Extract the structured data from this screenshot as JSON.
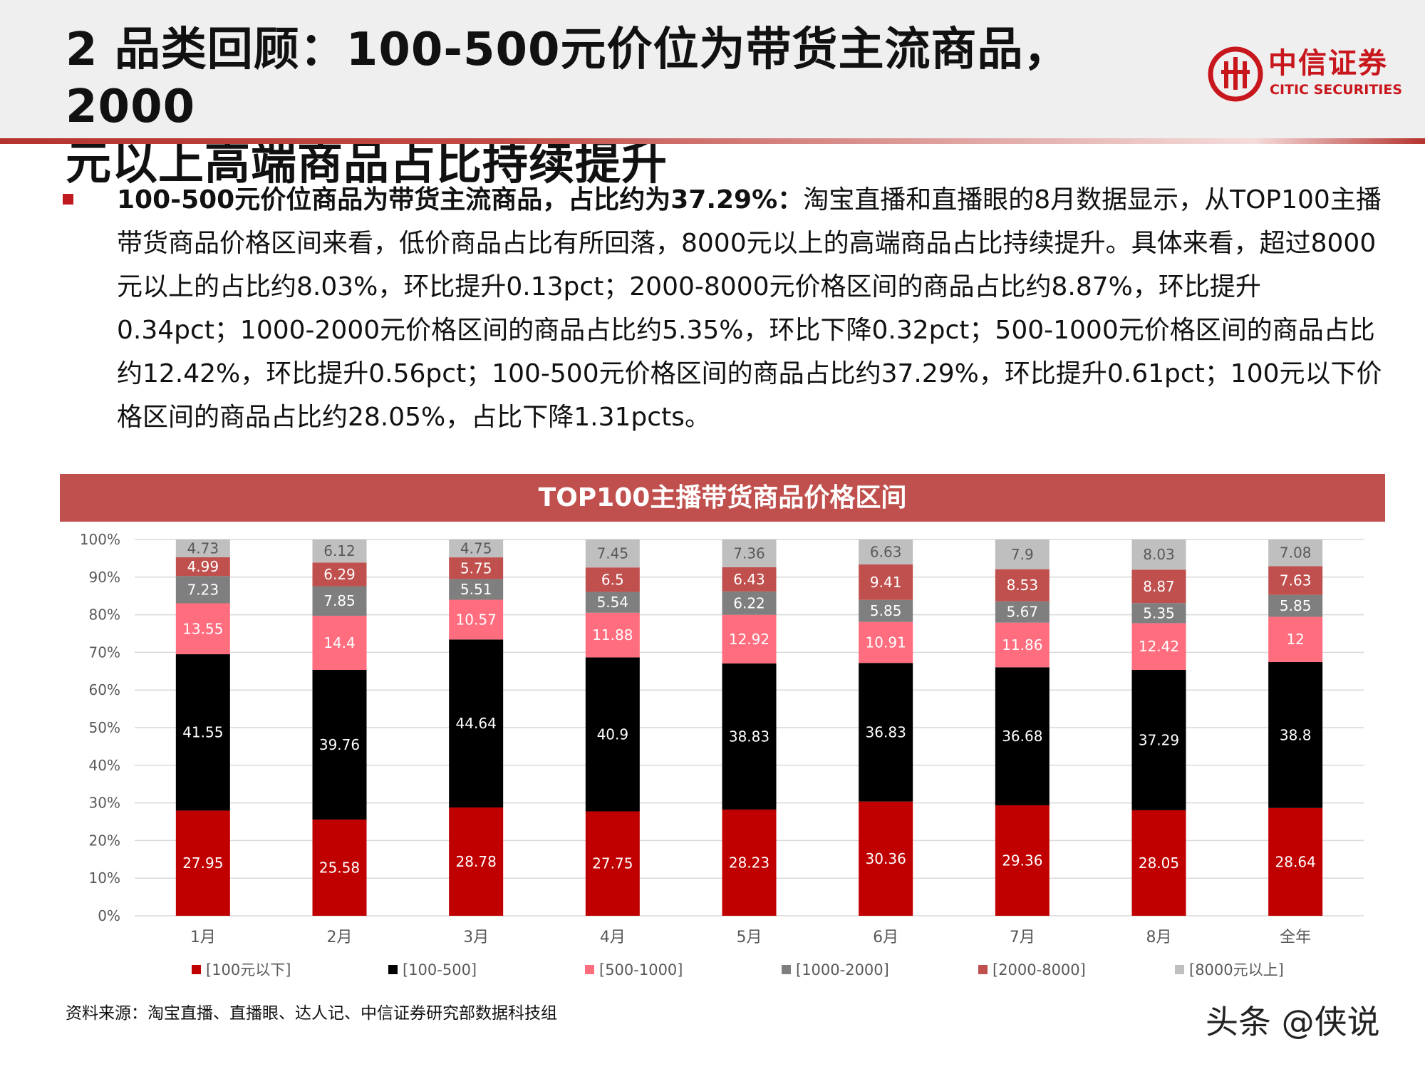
{
  "header": {
    "title_line1": "2 品类回顾：100-500元价位为带货主流商品，2000",
    "title_line2": "元以上高端商品占比持续提升",
    "logo_cn": "中信证券",
    "logo_en": "CITIC SECURITIES"
  },
  "body": {
    "bold_lead": "100-500元价位商品为带货主流商品，占比约为37.29%：",
    "text": "淘宝直播和直播眼的8月数据显示，从TOP100主播带货商品价格区间来看，低价商品占比有所回落，8000元以上的高端商品占比持续提升。具体来看，超过8000元以上的占比约8.03%，环比提升0.13pct；2000-8000元价格区间的商品占比约8.87%，环比提升0.34pct；1000-2000元价格区间的商品占比约5.35%，环比下降0.32pct；500-1000元价格区间的商品占比约12.42%，环比提升0.56pct；100-500元价格区间的商品占比约37.29%，环比提升0.61pct；100元以下价格区间的商品占比约28.05%，占比下降1.31pcts。"
  },
  "chart_data": {
    "type": "bar",
    "stacked": true,
    "title": "TOP100主播带货商品价格区间",
    "categories": [
      "1月",
      "2月",
      "3月",
      "4月",
      "5月",
      "6月",
      "7月",
      "8月",
      "全年"
    ],
    "y_ticks": [
      "0%",
      "10%",
      "20%",
      "30%",
      "40%",
      "50%",
      "60%",
      "70%",
      "80%",
      "90%",
      "100%"
    ],
    "ylim": [
      0,
      100
    ],
    "series": [
      {
        "name": "[100元以下]",
        "color": "#c00000",
        "values": [
          27.95,
          25.58,
          28.78,
          27.75,
          28.23,
          30.36,
          29.36,
          28.05,
          28.64
        ]
      },
      {
        "name": "[100-500]",
        "color": "#000000",
        "values": [
          41.55,
          39.76,
          44.64,
          40.9,
          38.83,
          36.83,
          36.68,
          37.29,
          38.8
        ]
      },
      {
        "name": "[500-1000]",
        "color": "#ff6d7e",
        "values": [
          13.55,
          14.4,
          10.57,
          11.88,
          12.92,
          10.91,
          11.86,
          12.42,
          12
        ]
      },
      {
        "name": "[1000-2000]",
        "color": "#7f7f7f",
        "values": [
          7.23,
          7.85,
          5.51,
          5.54,
          6.22,
          5.85,
          5.67,
          5.35,
          5.85
        ]
      },
      {
        "name": "[2000-8000]",
        "color": "#c0504d",
        "values": [
          4.99,
          6.29,
          5.75,
          6.5,
          6.43,
          9.41,
          8.53,
          8.87,
          7.63
        ]
      },
      {
        "name": "[8000元以上]",
        "color": "#bfbfbf",
        "values": [
          4.73,
          6.12,
          4.75,
          7.45,
          7.36,
          6.63,
          7.9,
          8.03,
          7.08
        ]
      }
    ],
    "legend_position": "bottom"
  },
  "footer": {
    "source": "资料来源：淘宝直播、直播眼、达人记、中信证券研究部数据科技组",
    "watermark": "头条 @侠说"
  }
}
